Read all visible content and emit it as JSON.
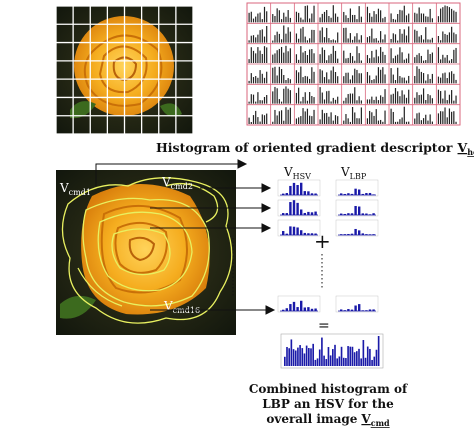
{
  "hog_caption": {
    "text": "Histogram of oriented gradient descriptor",
    "symbol_base": "V",
    "symbol_sub": "hog"
  },
  "region_labels": {
    "first": {
      "base": "V",
      "sub": "cmd1"
    },
    "second": {
      "base": "V",
      "sub": "cmd2"
    },
    "last": {
      "base": "V",
      "sub": "cmd16"
    }
  },
  "column_headers": {
    "hsv": {
      "base": "V",
      "sub": "HSV"
    },
    "lbp": {
      "base": "V",
      "sub": "LBP"
    }
  },
  "plus_sign": "+",
  "equals_sign": "=",
  "combined_caption": {
    "line1": "Combined histogram of",
    "line2": "LBP an HSV for the",
    "line3_prefix": "overall image",
    "symbol_base": "V",
    "symbol_sub": "cmd"
  },
  "colors": {
    "grid_line": "#ffffff",
    "hog_grid": "#d9667c",
    "hog_bars": "#222222",
    "hist_blue": "#1a1aa8",
    "contour": "#e8f060",
    "rose": "#f2a91c"
  }
}
